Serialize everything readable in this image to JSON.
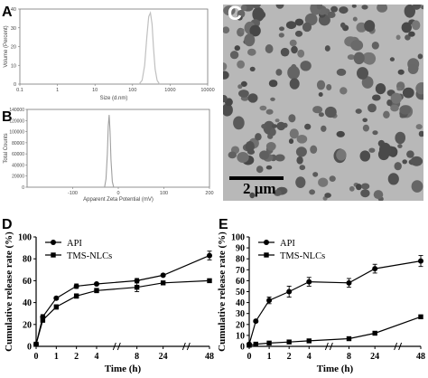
{
  "panels": {
    "A": {
      "letter": "A"
    },
    "B": {
      "letter": "B"
    },
    "C": {
      "letter": "C",
      "scale_bar": "2 μm"
    },
    "D": {
      "letter": "D"
    },
    "E": {
      "letter": "E"
    }
  },
  "chart_data": [
    {
      "id": "A",
      "type": "line",
      "xlabel": "Size (d.nm)",
      "ylabel": "Volume (Percent)",
      "xscale": "log",
      "xlim": [
        0.1,
        10000
      ],
      "xticks": [
        0.1,
        1,
        10,
        100,
        1000,
        10000
      ],
      "xtick_labels": [
        "0.1",
        "1",
        "10",
        "100",
        "1000",
        "10000"
      ],
      "ylim": [
        0,
        40
      ],
      "yticks": [
        0,
        10,
        20,
        30,
        40
      ],
      "series": [
        {
          "x": [
            150,
            180,
            210,
            240,
            270,
            300,
            330,
            360,
            400,
            450,
            520
          ],
          "y": [
            0,
            2,
            10,
            25,
            36,
            38,
            32,
            20,
            8,
            2,
            0
          ]
        }
      ],
      "color": "#c0c0c0"
    },
    {
      "id": "B",
      "type": "line",
      "xlabel": "Apparent Zeta Potential (mV)",
      "ylabel": "Total Counts",
      "xlim": [
        -200,
        200
      ],
      "xticks": [
        -100,
        0,
        100,
        200
      ],
      "xtick_labels": [
        "-100",
        "0",
        "100",
        "200"
      ],
      "ylim": [
        0,
        140000
      ],
      "yticks": [
        0,
        20000,
        40000,
        60000,
        80000,
        100000,
        120000,
        140000
      ],
      "series": [
        {
          "x": [
            -30,
            -27,
            -24,
            -22,
            -20,
            -18,
            -16,
            -13,
            -10
          ],
          "y": [
            0,
            15000,
            60000,
            110000,
            130000,
            100000,
            50000,
            10000,
            0
          ]
        }
      ],
      "color": "#a0a0a0"
    },
    {
      "id": "D",
      "type": "line",
      "xlabel": "Time (h)",
      "ylabel": "Cumulative release rate (%)",
      "xcategories": [
        "0",
        "1",
        "2",
        "4",
        "8",
        "24",
        "48"
      ],
      "xpositions": [
        0,
        0.5,
        1,
        2,
        3,
        4,
        6,
        8,
        12,
        24,
        48
      ],
      "ylim": [
        0,
        100
      ],
      "yticks": [
        0,
        20,
        40,
        60,
        80,
        100
      ],
      "series": [
        {
          "name": "API",
          "marker": "circle",
          "x": [
            0,
            0.5,
            1,
            2,
            4,
            8,
            24,
            48
          ],
          "y": [
            2,
            27,
            44,
            55,
            57,
            60,
            65,
            83
          ],
          "err": [
            0,
            2,
            1,
            2,
            1,
            2,
            1,
            4
          ]
        },
        {
          "name": "TMS-NLCs",
          "marker": "square",
          "x": [
            0,
            0.5,
            1,
            2,
            4,
            8,
            24,
            48
          ],
          "y": [
            2,
            24,
            36,
            46,
            51,
            54,
            58,
            60
          ],
          "err": [
            0,
            2,
            2,
            2,
            2,
            4,
            1,
            1
          ]
        }
      ]
    },
    {
      "id": "E",
      "type": "line",
      "xlabel": "Time (h)",
      "ylabel": "Cumulative release rate (%)",
      "xcategories": [
        "0",
        "1",
        "2",
        "4",
        "8",
        "24",
        "48"
      ],
      "ylim": [
        0,
        100
      ],
      "yticks": [
        0,
        10,
        20,
        30,
        40,
        50,
        60,
        70,
        80,
        90,
        100
      ],
      "series": [
        {
          "name": "API",
          "marker": "circle",
          "x": [
            0,
            0.5,
            1,
            2,
            4,
            8,
            24,
            48
          ],
          "y": [
            2,
            23,
            42,
            50,
            59,
            58,
            71,
            78
          ],
          "err": [
            0,
            1,
            3,
            5,
            4,
            4,
            4,
            5
          ]
        },
        {
          "name": "TMS-NLCs",
          "marker": "square",
          "x": [
            0,
            0.5,
            1,
            2,
            4,
            8,
            24,
            48
          ],
          "y": [
            1,
            2,
            3,
            4,
            5,
            7,
            12,
            27
          ],
          "err": [
            0,
            0,
            0,
            0,
            0,
            0,
            1,
            1
          ]
        }
      ]
    }
  ]
}
